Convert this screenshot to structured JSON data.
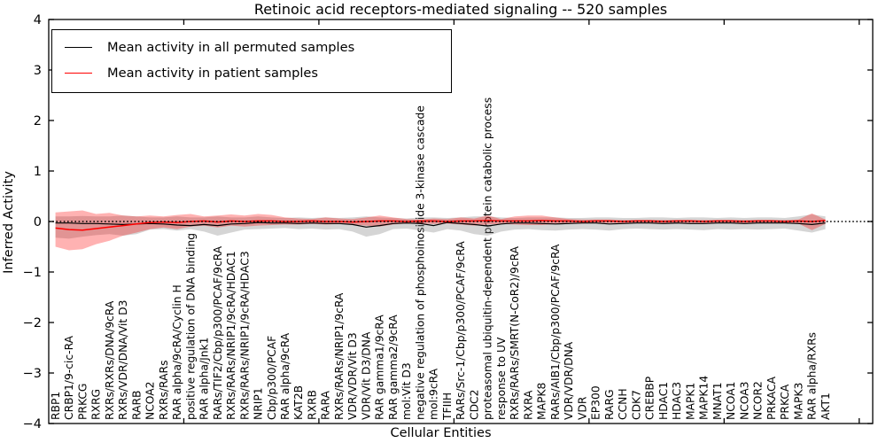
{
  "title": "Retinoic acid receptors-mediated signaling -- 520 samples",
  "legend": {
    "items": [
      {
        "label": "Mean activity in all permuted samples",
        "color": "#000000"
      },
      {
        "label": "Mean activity in patient samples",
        "color": "#ff0000"
      }
    ]
  },
  "axes": {
    "ylabel": "Inferred Activity",
    "xlabel": "Cellular Entities",
    "ylim": [
      -4,
      4
    ],
    "yticks": [
      -4,
      -3,
      -2,
      -1,
      0,
      1,
      2,
      3,
      4
    ],
    "xlim": [
      0,
      61
    ],
    "xticks": [
      10,
      20,
      30,
      40,
      50,
      60
    ],
    "grid": false,
    "legend_position": "upper left"
  },
  "colors": {
    "permuted_line": "#000000",
    "patient_line": "#ff0000",
    "permuted_band": "rgba(128,128,128,0.33)",
    "patient_band": "rgba(255,0,0,0.30)",
    "zero_line": "#000000",
    "spine": "#000000"
  },
  "chart_data": {
    "type": "line",
    "title": "Retinoic acid receptors-mediated signaling -- 520 samples",
    "xlabel": "Cellular Entities",
    "ylabel": "Inferred Activity",
    "ylim": [
      -4,
      4
    ],
    "categories": [
      "RBP1",
      "CRBP1/9-cic-RA",
      "PRKCG",
      "RXRG",
      "RXRs/RXRs/DNA/9cRA",
      "RXRs/VDR/DNA/Vit D3",
      "RARB",
      "NCOA2",
      "RXRs/RARs",
      "RAR alpha/9cRA/Cyclin H",
      "positive regulation of DNA binding",
      "RAR alpha/Jnk1",
      "RARs/TIF2/Cbp/p300/PCAF/9cRA",
      "RXRs/RARs/NRIP1/9cRA/HDAC1",
      "RXRs/RARs/NRIP1/9cRA/HDAC3",
      "NRIP1",
      "Cbp/p300/PCAF",
      "RAR alpha/9cRA",
      "KAT2B",
      "RXRB",
      "RARA",
      "RXRs/RARs/NRIP1/9cRA",
      "VDR/VDR/Vit D3",
      "VDR/Vit D3/DNA",
      "RAR gamma1/9cRA",
      "RAR gamma2/9cRA",
      "mol:Vit D3",
      "negative regulation of phosphoinositide 3-kinase cascade",
      "mol:9cRA",
      "TFIIH",
      "RARs/Src-1/Cbp/p300/PCAF/9cRA",
      "CDC2",
      "proteasomal ubiquitin-dependent protein catabolic process",
      "response to UV",
      "RXRs/RARs/SMRT(N-CoR2)/9cRA",
      "RXRA",
      "MAPK8",
      "RARs/AIB1/Cbp/p300/PCAF/9cRA",
      "VDR/VDR/DNA",
      "VDR",
      "EP300",
      "RARG",
      "CCNH",
      "CDK7",
      "CREBBP",
      "HDAC1",
      "HDAC3",
      "MAPK1",
      "MAPK14",
      "MNAT1",
      "NCOA1",
      "NCOA3",
      "NCOR2",
      "PRKACA",
      "PRKCA",
      "MAPK3",
      "RAR alpha/RXRs",
      "AKT1"
    ],
    "series": [
      {
        "name": "Mean activity in all permuted samples",
        "color": "#000000",
        "values": [
          -0.03,
          -0.03,
          -0.04,
          -0.04,
          -0.05,
          -0.06,
          -0.05,
          -0.04,
          -0.05,
          -0.07,
          -0.08,
          -0.06,
          -0.08,
          -0.05,
          -0.04,
          -0.02,
          -0.03,
          -0.03,
          -0.04,
          -0.03,
          -0.04,
          -0.04,
          -0.06,
          -0.11,
          -0.08,
          -0.04,
          -0.03,
          -0.04,
          -0.08,
          -0.02,
          -0.04,
          -0.06,
          -0.09,
          -0.05,
          -0.03,
          -0.03,
          -0.04,
          -0.05,
          -0.04,
          -0.03,
          -0.03,
          -0.05,
          -0.04,
          -0.03,
          -0.03,
          -0.04,
          -0.03,
          -0.04,
          -0.04,
          -0.03,
          -0.03,
          -0.04,
          -0.03,
          -0.03,
          -0.03,
          -0.04,
          -0.06,
          -0.03
        ]
      },
      {
        "name": "Mean activity in patient samples",
        "color": "#ff0000",
        "values": [
          -0.13,
          -0.16,
          -0.17,
          -0.14,
          -0.11,
          -0.08,
          -0.05,
          -0.02,
          -0.01,
          -0.02,
          0.0,
          0.01,
          -0.01,
          0.01,
          0.0,
          0.01,
          0.01,
          0.0,
          0.0,
          0.01,
          0.0,
          0.0,
          -0.01,
          0.0,
          0.01,
          0.01,
          0.0,
          0.01,
          0.01,
          0.0,
          0.01,
          0.01,
          0.02,
          0.01,
          0.01,
          0.01,
          0.02,
          0.01,
          0.01,
          0.0,
          0.01,
          0.01,
          0.0,
          0.01,
          0.01,
          0.0,
          0.01,
          0.01,
          0.0,
          0.01,
          0.01,
          0.0,
          0.01,
          0.01,
          0.0,
          0.01,
          0.0,
          0.02
        ]
      }
    ],
    "bands": [
      {
        "name": "permuted-band",
        "color": "rgba(128,128,128,0.33)",
        "upper": [
          0.1,
          0.1,
          0.11,
          0.1,
          0.1,
          0.12,
          0.1,
          0.08,
          0.08,
          0.1,
          0.08,
          0.08,
          0.1,
          0.08,
          0.08,
          0.1,
          0.08,
          0.07,
          0.08,
          0.07,
          0.08,
          0.07,
          0.08,
          0.1,
          0.08,
          0.07,
          0.06,
          0.08,
          0.08,
          0.07,
          0.08,
          0.1,
          0.1,
          0.08,
          0.07,
          0.08,
          0.08,
          0.08,
          0.07,
          0.07,
          0.08,
          0.08,
          0.07,
          0.07,
          0.08,
          0.08,
          0.07,
          0.08,
          0.08,
          0.07,
          0.08,
          0.07,
          0.08,
          0.08,
          0.07,
          0.1,
          0.14,
          0.1
        ],
        "lower": [
          -0.32,
          -0.34,
          -0.3,
          -0.27,
          -0.25,
          -0.28,
          -0.25,
          -0.16,
          -0.15,
          -0.18,
          -0.15,
          -0.2,
          -0.28,
          -0.22,
          -0.16,
          -0.15,
          -0.14,
          -0.13,
          -0.15,
          -0.14,
          -0.16,
          -0.15,
          -0.2,
          -0.3,
          -0.25,
          -0.15,
          -0.14,
          -0.18,
          -0.22,
          -0.15,
          -0.18,
          -0.25,
          -0.28,
          -0.2,
          -0.16,
          -0.15,
          -0.17,
          -0.18,
          -0.16,
          -0.15,
          -0.16,
          -0.18,
          -0.15,
          -0.14,
          -0.15,
          -0.16,
          -0.15,
          -0.16,
          -0.17,
          -0.15,
          -0.16,
          -0.15,
          -0.16,
          -0.15,
          -0.14,
          -0.18,
          -0.22,
          -0.15
        ]
      },
      {
        "name": "patient-band",
        "color": "rgba(255,0,0,0.30)",
        "upper": [
          0.18,
          0.2,
          0.22,
          0.15,
          0.17,
          0.12,
          0.1,
          0.12,
          0.1,
          0.13,
          0.15,
          0.1,
          0.12,
          0.14,
          0.12,
          0.15,
          0.13,
          0.08,
          0.06,
          0.05,
          0.08,
          0.06,
          0.05,
          0.08,
          0.12,
          0.08,
          0.05,
          0.04,
          0.06,
          0.05,
          0.08,
          0.06,
          0.12,
          0.05,
          0.1,
          0.12,
          0.12,
          0.08,
          0.05,
          0.04,
          0.04,
          0.04,
          0.03,
          0.03,
          0.03,
          0.03,
          0.03,
          0.03,
          0.03,
          0.03,
          0.03,
          0.03,
          0.03,
          0.03,
          0.03,
          0.04,
          0.16,
          0.04
        ],
        "lower": [
          -0.5,
          -0.57,
          -0.55,
          -0.45,
          -0.38,
          -0.28,
          -0.22,
          -0.15,
          -0.12,
          -0.15,
          -0.1,
          -0.08,
          -0.12,
          -0.08,
          -0.1,
          -0.08,
          -0.07,
          -0.06,
          -0.06,
          -0.05,
          -0.06,
          -0.05,
          -0.06,
          -0.08,
          -0.1,
          -0.06,
          -0.04,
          -0.04,
          -0.05,
          -0.04,
          -0.06,
          -0.08,
          -0.06,
          -0.05,
          -0.06,
          -0.07,
          -0.07,
          -0.05,
          -0.04,
          -0.04,
          -0.03,
          -0.03,
          -0.03,
          -0.03,
          -0.03,
          -0.03,
          -0.03,
          -0.03,
          -0.03,
          -0.03,
          -0.03,
          -0.03,
          -0.03,
          -0.03,
          -0.03,
          -0.04,
          -0.17,
          -0.05
        ]
      }
    ],
    "zero_line": 0
  }
}
